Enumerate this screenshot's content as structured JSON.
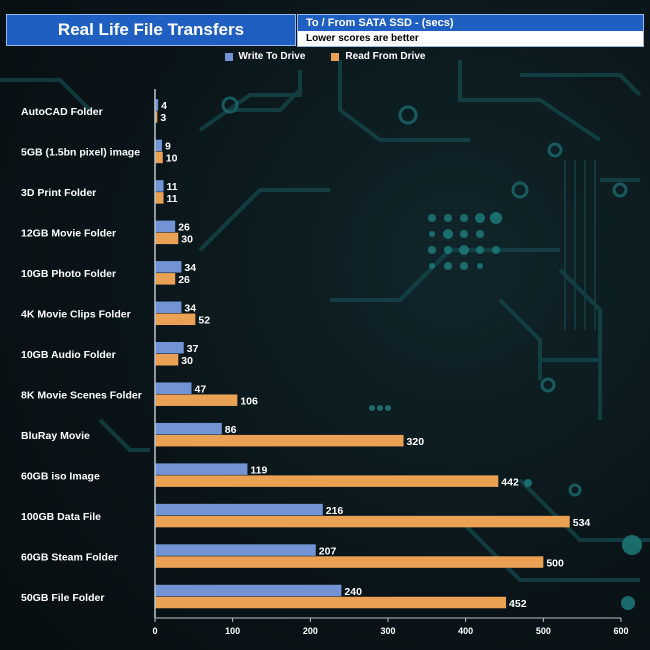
{
  "title": "Real Life File Transfers",
  "subtitle": "To /  From SATA SSD - (secs)",
  "note": "Lower scores are better",
  "colors": {
    "write": "#7294d4",
    "read": "#eba154",
    "banner": "#1f5fc2"
  },
  "chart_data": {
    "type": "bar",
    "orientation": "horizontal",
    "categories": [
      "AutoCAD Folder",
      "5GB (1.5bn pixel) image",
      "3D Print Folder",
      "12GB Movie Folder",
      "10GB Photo Folder",
      "4K Movie Clips Folder",
      "10GB Audio Folder",
      "8K Movie Scenes Folder",
      "BluRay Movie",
      "60GB iso Image",
      "100GB Data File",
      "60GB Steam Folder",
      "50GB File Folder"
    ],
    "series": [
      {
        "name": "Write To  Drive",
        "values": [
          4,
          9,
          11,
          26,
          34,
          34,
          37,
          47,
          86,
          119,
          216,
          207,
          240
        ]
      },
      {
        "name": "Read From  Drive",
        "values": [
          3,
          10,
          11,
          30,
          26,
          52,
          30,
          106,
          320,
          442,
          534,
          500,
          452
        ]
      }
    ],
    "xlim": [
      0,
      600
    ],
    "xticks": [
      0,
      100,
      200,
      300,
      400,
      500,
      600
    ],
    "title": "Real Life File Transfers",
    "xlabel": "",
    "ylabel": "",
    "legend": "top-center"
  }
}
